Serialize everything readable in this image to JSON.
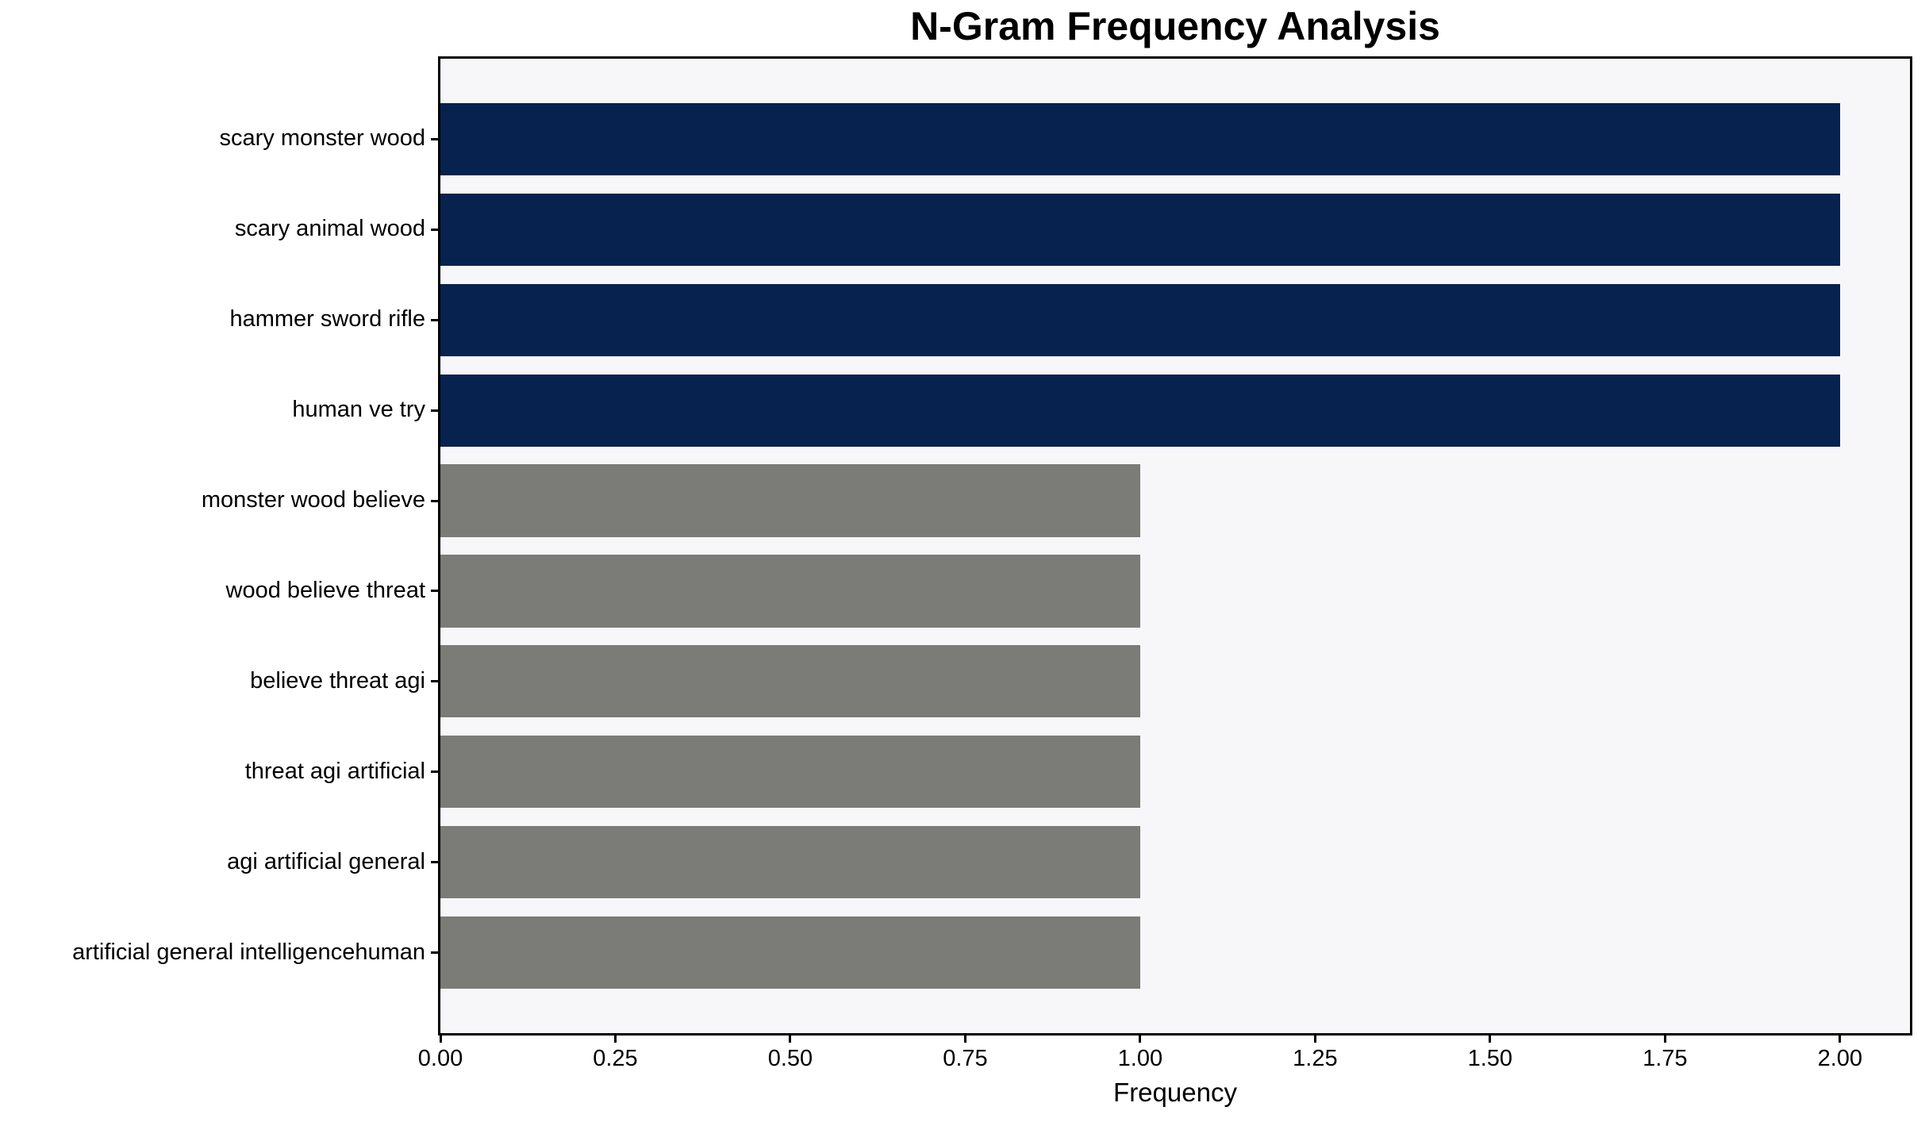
{
  "chart_data": {
    "type": "bar",
    "orientation": "horizontal",
    "title": "N-Gram Frequency Analysis",
    "xlabel": "Frequency",
    "ylabel": "",
    "categories": [
      "scary monster wood",
      "scary animal wood",
      "hammer sword rifle",
      "human ve try",
      "monster wood believe",
      "wood believe threat",
      "believe threat agi",
      "threat agi artificial",
      "agi artificial general",
      "artificial general intelligencehuman"
    ],
    "values": [
      2,
      2,
      2,
      2,
      1,
      1,
      1,
      1,
      1,
      1
    ],
    "bar_colors": [
      "#07224e",
      "#07224e",
      "#07224e",
      "#07224e",
      "#7b7b78",
      "#7b7b78",
      "#7b7b78",
      "#7b7b78",
      "#7b7b78",
      "#7b7b78"
    ],
    "xtick_values": [
      0.0,
      0.25,
      0.5,
      0.75,
      1.0,
      1.25,
      1.5,
      1.75,
      2.0
    ],
    "xtick_labels": [
      "0.00",
      "0.25",
      "0.50",
      "0.75",
      "1.00",
      "1.25",
      "1.50",
      "1.75",
      "2.00"
    ],
    "xlim": [
      0,
      2.1
    ],
    "bar_height_fraction": 0.8,
    "grid": false,
    "legend": null,
    "colors": {
      "highlight_bar": "#07224e",
      "base_bar": "#7b7b78",
      "plot_background": "#f7f7f9",
      "figure_background": "#ffffff",
      "axis": "#000000",
      "text": "#000000"
    }
  }
}
